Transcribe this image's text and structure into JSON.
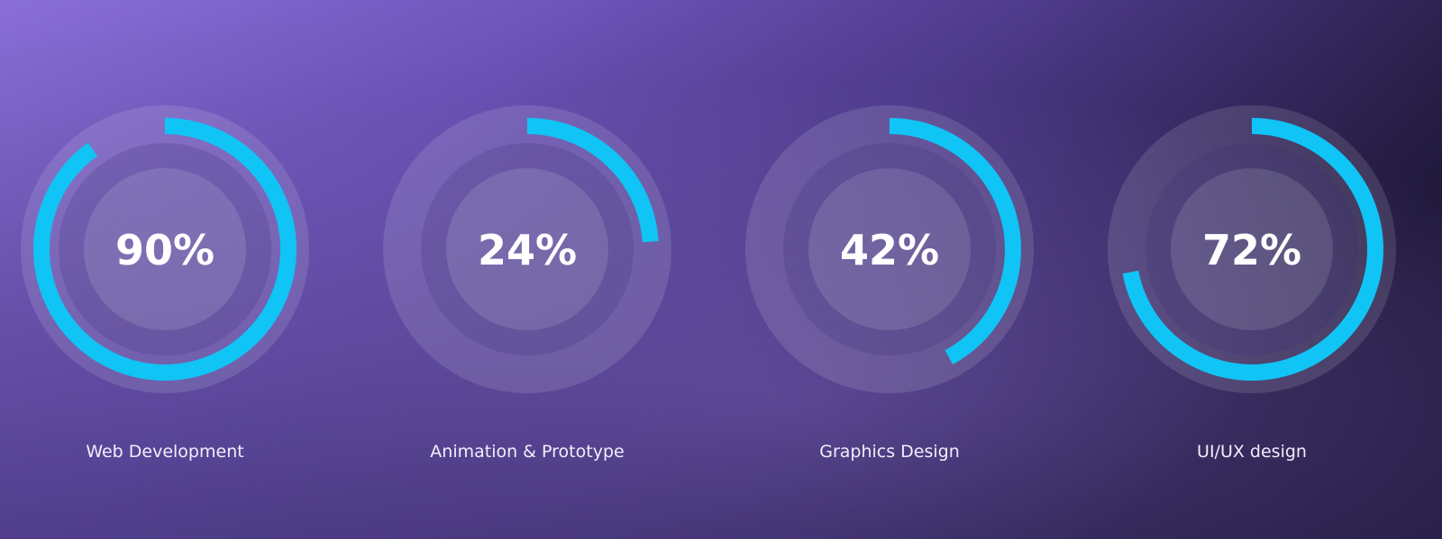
{
  "skills": [
    {
      "label": "Web Development",
      "value": 90,
      "value_label": "90%"
    },
    {
      "label": "Animation & Prototype",
      "value": 24,
      "value_label": "24%"
    },
    {
      "label": "Graphics Design",
      "value": 42,
      "value_label": "42%"
    },
    {
      "label": "UI/UX design",
      "value": 72,
      "value_label": "72%"
    }
  ]
}
